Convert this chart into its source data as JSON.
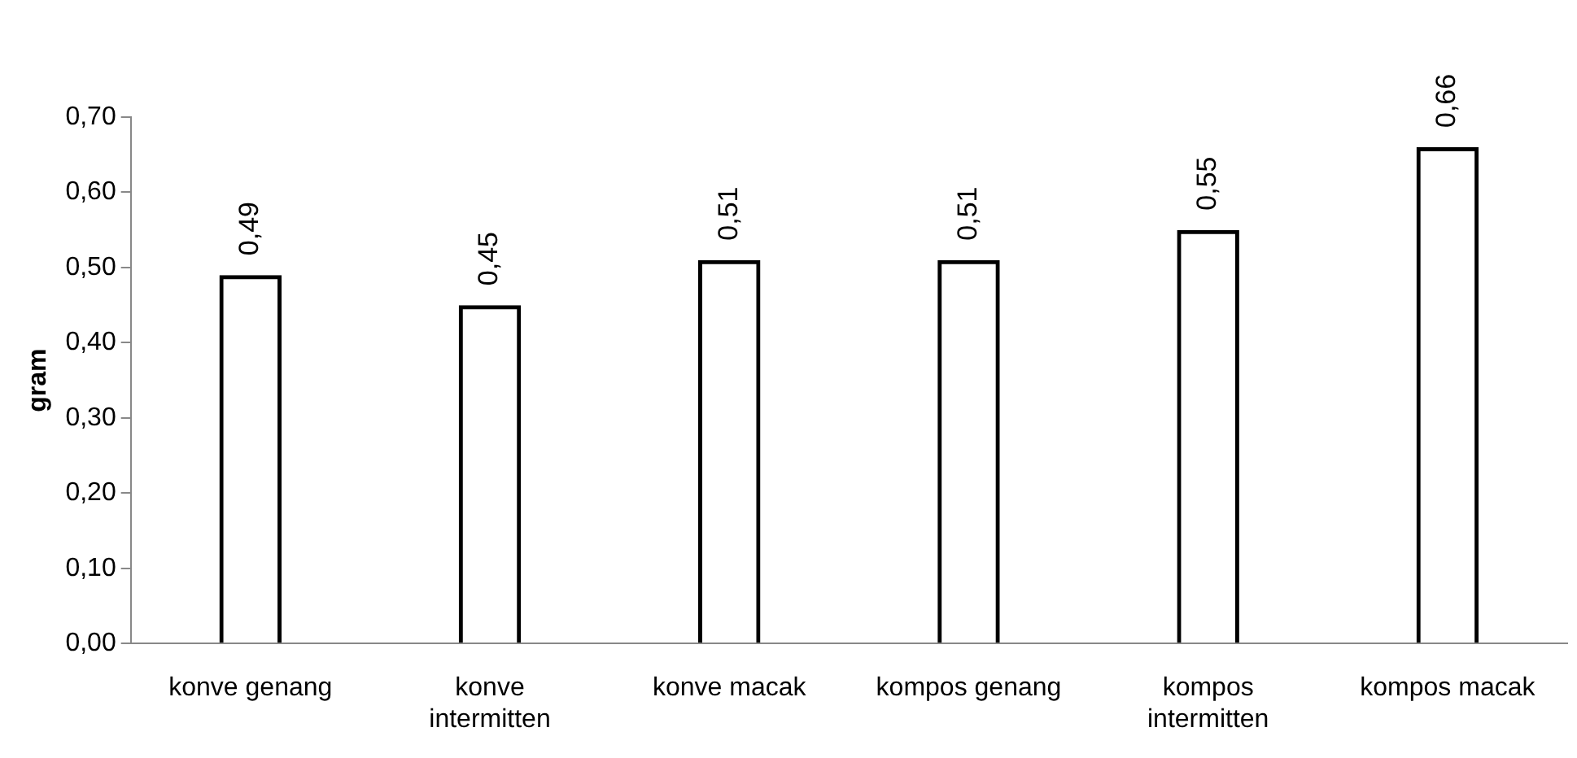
{
  "chart_data": {
    "type": "bar",
    "ylabel": "gram",
    "categories": [
      "konve genang",
      "konve intermitten",
      "konve macak",
      "kompos genang",
      "kompos intermitten",
      "kompos macak"
    ],
    "values": [
      0.49,
      0.45,
      0.51,
      0.51,
      0.55,
      0.66
    ],
    "value_labels": [
      "0,49",
      "0,45",
      "0,51",
      "0,51",
      "0,55",
      "0,66"
    ],
    "color": "#000000",
    "ylim": [
      0,
      0.7
    ],
    "yticks": [
      {
        "value": 0,
        "label": "0,00"
      },
      {
        "value": 0.1,
        "label": "0,10"
      },
      {
        "value": 0.2,
        "label": "0,20"
      },
      {
        "value": 0.3,
        "label": "0,30"
      },
      {
        "value": 0.4,
        "label": "0,40"
      },
      {
        "value": 0.5,
        "label": "0,50"
      },
      {
        "value": 0.6,
        "label": "0,60"
      },
      {
        "value": 0.7,
        "label": "0,70"
      }
    ],
    "grid": false,
    "legend": false
  }
}
